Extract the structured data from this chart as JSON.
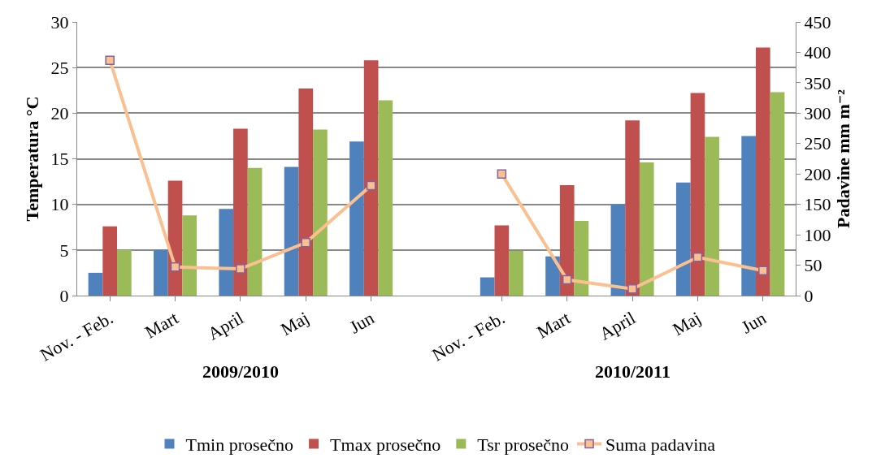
{
  "chart_data": {
    "type": "bar",
    "categories": [
      "Nov. - Feb.",
      "Mart",
      "April",
      "Maj",
      "Jun",
      null,
      "Nov. - Feb.",
      "Mart",
      "April",
      "Maj",
      "Jun"
    ],
    "series": [
      {
        "name": "Tmin prosečno",
        "color": "#4f81bd",
        "values": [
          2.5,
          5.0,
          9.5,
          14.1,
          16.9,
          null,
          2.0,
          4.3,
          10.0,
          12.4,
          17.5
        ]
      },
      {
        "name": "Tmax prosečno",
        "color": "#c0504d",
        "values": [
          7.6,
          12.6,
          18.3,
          22.7,
          25.8,
          null,
          7.7,
          12.1,
          19.2,
          22.2,
          27.2
        ]
      },
      {
        "name": "Tsr prosečno",
        "color": "#9bbb59",
        "values": [
          5.0,
          8.8,
          14.0,
          18.2,
          21.4,
          null,
          4.9,
          8.2,
          14.6,
          17.4,
          22.3
        ]
      },
      {
        "name": "Suma padavina",
        "type": "line",
        "axis": "y2",
        "color": "#fac090",
        "marker": "square",
        "values": [
          387,
          47,
          44,
          87,
          181,
          null,
          200,
          26,
          11,
          63,
          41
        ]
      }
    ],
    "ylabel": "Temperatura °C",
    "y2label": "Padavine mm m⁻²",
    "ylim": [
      0,
      30
    ],
    "yticks": [
      0,
      5,
      10,
      15,
      20,
      25,
      30
    ],
    "y2lim": [
      0,
      450
    ],
    "y2ticks": [
      0,
      50,
      100,
      150,
      200,
      250,
      300,
      350,
      400,
      450
    ],
    "annotations": [
      "2009/2010",
      "2010/2011"
    ],
    "grid": "y",
    "legend": "bottom"
  }
}
